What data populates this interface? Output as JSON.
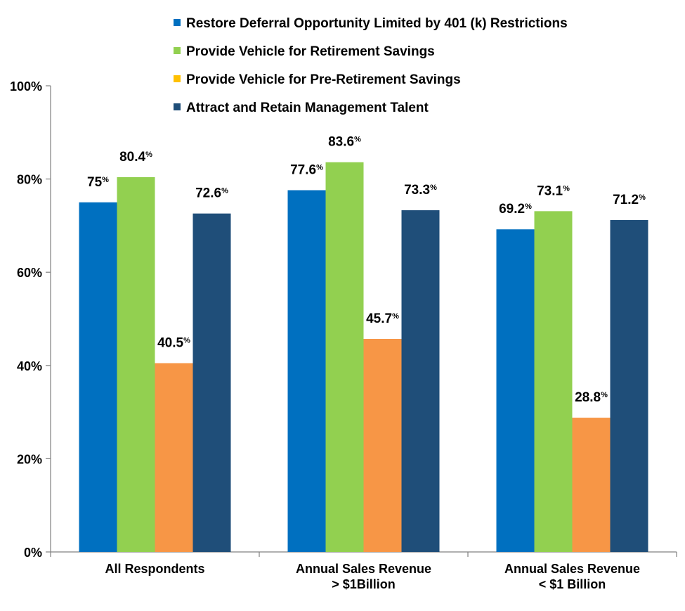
{
  "chart_data": {
    "type": "bar",
    "categories": [
      [
        "All Respondents"
      ],
      [
        "Annual Sales Revenue",
        "> $1Billion"
      ],
      [
        "Annual Sales Revenue",
        "< $1 Billion"
      ]
    ],
    "series": [
      {
        "name": "Restore Deferral Opportunity Limited by 401 (k) Restrictions",
        "color": "#0070C0",
        "values": [
          75,
          77.6,
          69.2
        ],
        "labels": [
          "75",
          "77.6",
          "69.2"
        ]
      },
      {
        "name": "Provide Vehicle for Retirement Savings",
        "color": "#92D050",
        "values": [
          80.4,
          83.6,
          73.1
        ],
        "labels": [
          "80.4",
          "83.6",
          "73.1"
        ]
      },
      {
        "name": "Provide Vehicle for Pre-Retirement Savings",
        "color": "#F79646",
        "legend_color": "#FFC000",
        "values": [
          40.5,
          45.7,
          28.8
        ],
        "labels": [
          "40.5",
          "45.7",
          "28.8"
        ]
      },
      {
        "name": "Attract and Retain Management Talent",
        "color": "#1F4E79",
        "values": [
          72.6,
          73.3,
          71.2
        ],
        "labels": [
          "72.6",
          "73.3",
          "71.2"
        ]
      }
    ],
    "label_suffix": "%",
    "ylim": [
      0,
      100
    ],
    "yticks": [
      0,
      20,
      40,
      60,
      80,
      100
    ],
    "ytick_labels": [
      "0%",
      "20%",
      "40%",
      "60%",
      "80%",
      "100%"
    ],
    "grid": false,
    "legend_position": "top"
  }
}
